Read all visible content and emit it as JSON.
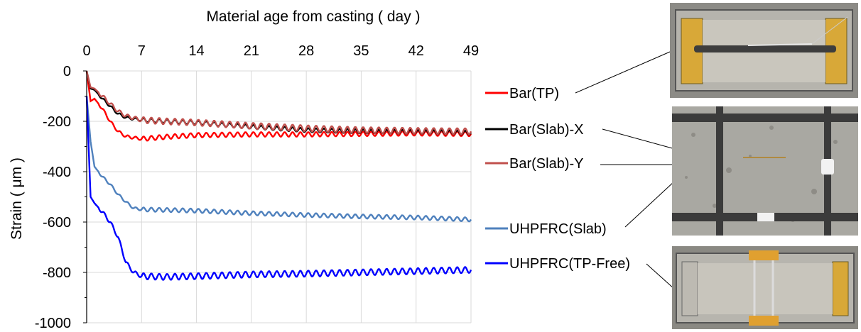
{
  "chart_data": {
    "type": "line",
    "title": "",
    "xlabel": "Material age from casting ( day )",
    "ylabel": "Strain ( μm )",
    "xlim": [
      0,
      49
    ],
    "ylim": [
      -1000,
      0
    ],
    "x_ticks": [
      "0",
      "7",
      "14",
      "21",
      "28",
      "35",
      "42",
      "49"
    ],
    "y_ticks": [
      "0",
      "-200",
      "-400",
      "-600",
      "-800",
      "-1000"
    ],
    "x_axis_position": "top",
    "grid": "vertical",
    "legend_position": "right",
    "series": [
      {
        "name": "Bar(TP)",
        "color": "#ff0000",
        "points": [
          [
            0,
            0
          ],
          [
            0.5,
            -120
          ],
          [
            1,
            -110
          ],
          [
            2,
            -150
          ],
          [
            3,
            -200
          ],
          [
            4,
            -240
          ],
          [
            5,
            -260
          ],
          [
            6,
            -265
          ],
          [
            7,
            -270
          ],
          [
            10,
            -262
          ],
          [
            14,
            -255
          ],
          [
            21,
            -252
          ],
          [
            28,
            -252
          ],
          [
            35,
            -250
          ],
          [
            42,
            -248
          ],
          [
            49,
            -250
          ]
        ]
      },
      {
        "name": "Bar(Slab)-X",
        "color": "#000000",
        "points": [
          [
            0,
            0
          ],
          [
            0.5,
            -70
          ],
          [
            1,
            -75
          ],
          [
            2,
            -110
          ],
          [
            3,
            -140
          ],
          [
            4,
            -170
          ],
          [
            5,
            -185
          ],
          [
            7,
            -195
          ],
          [
            10,
            -200
          ],
          [
            14,
            -205
          ],
          [
            21,
            -222
          ],
          [
            28,
            -235
          ],
          [
            35,
            -240
          ],
          [
            42,
            -242
          ],
          [
            49,
            -245
          ]
        ]
      },
      {
        "name": "Bar(Slab)-Y",
        "color": "#c0504d",
        "points": [
          [
            0,
            0
          ],
          [
            0.5,
            -65
          ],
          [
            1,
            -70
          ],
          [
            2,
            -100
          ],
          [
            3,
            -130
          ],
          [
            4,
            -160
          ],
          [
            5,
            -178
          ],
          [
            7,
            -195
          ],
          [
            10,
            -200
          ],
          [
            14,
            -205
          ],
          [
            21,
            -218
          ],
          [
            28,
            -228
          ],
          [
            35,
            -235
          ],
          [
            42,
            -238
          ],
          [
            49,
            -240
          ]
        ]
      },
      {
        "name": "UHPFRC(Slab)",
        "color": "#4f81bd",
        "points": [
          [
            0,
            -100
          ],
          [
            0.5,
            -280
          ],
          [
            1,
            -380
          ],
          [
            2,
            -420
          ],
          [
            3,
            -450
          ],
          [
            4,
            -490
          ],
          [
            5,
            -520
          ],
          [
            6,
            -545
          ],
          [
            7,
            -550
          ],
          [
            10,
            -552
          ],
          [
            14,
            -555
          ],
          [
            21,
            -565
          ],
          [
            28,
            -572
          ],
          [
            35,
            -578
          ],
          [
            42,
            -582
          ],
          [
            49,
            -590
          ]
        ]
      },
      {
        "name": "UHPFRC(TP-Free)",
        "color": "#0000ff",
        "points": [
          [
            0,
            -100
          ],
          [
            0.5,
            -500
          ],
          [
            1,
            -525
          ],
          [
            2,
            -560
          ],
          [
            3,
            -600
          ],
          [
            4,
            -660
          ],
          [
            5,
            -760
          ],
          [
            6,
            -800
          ],
          [
            7,
            -815
          ],
          [
            10,
            -818
          ],
          [
            14,
            -815
          ],
          [
            21,
            -808
          ],
          [
            28,
            -805
          ],
          [
            35,
            -800
          ],
          [
            42,
            -795
          ],
          [
            49,
            -790
          ]
        ]
      }
    ]
  }
}
